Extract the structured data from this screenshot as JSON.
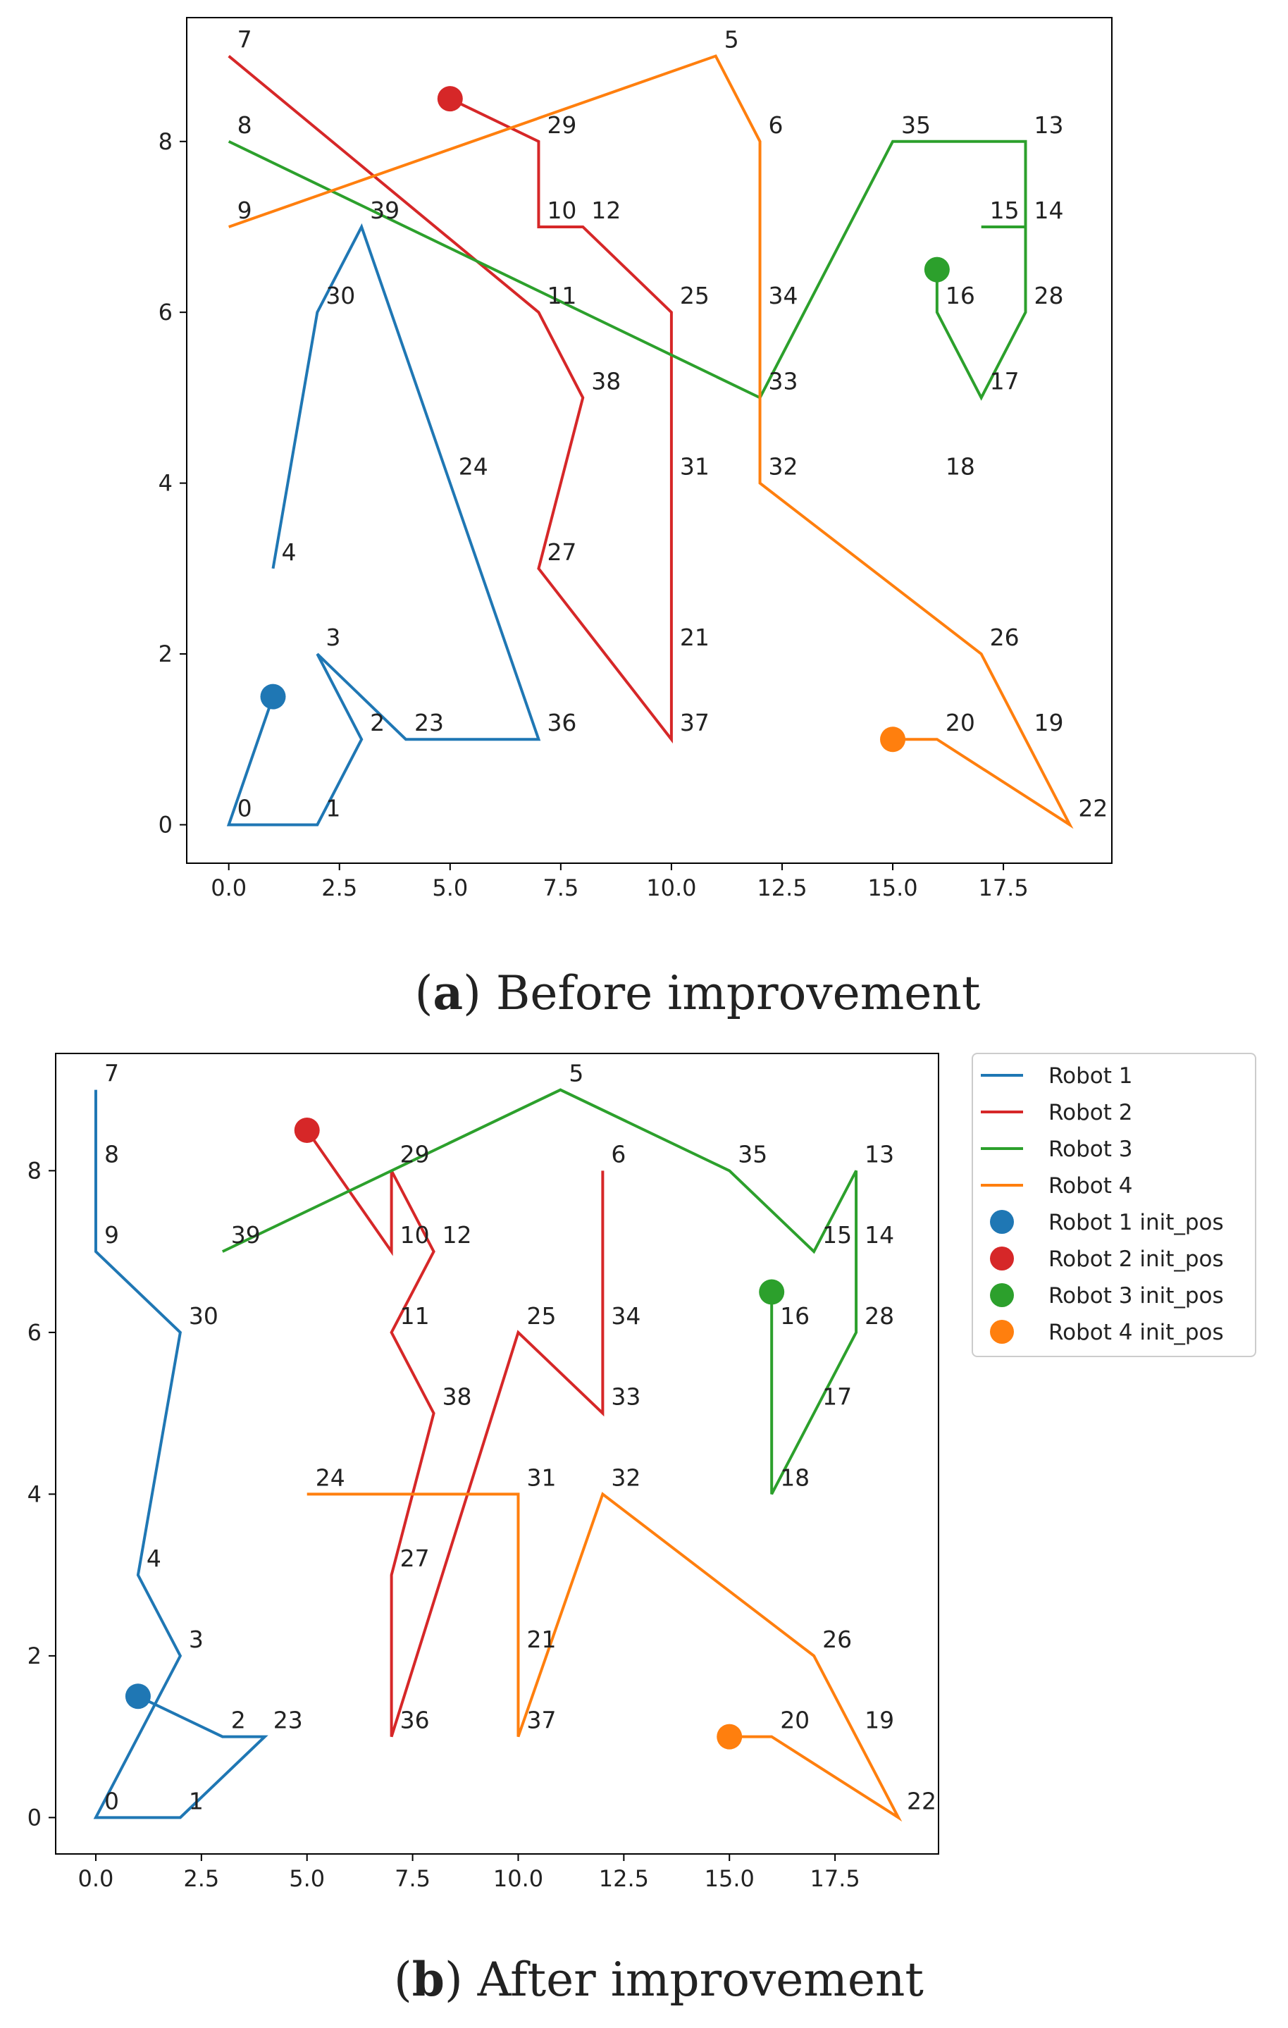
{
  "chart_data": [
    {
      "type": "line",
      "title": "",
      "caption_letter": "a",
      "caption_text": "Before improvement",
      "xlabel": "",
      "ylabel": "",
      "xlim": [
        -0.95,
        19.95
      ],
      "ylim": [
        -0.45,
        9.45
      ],
      "xticks": [
        0.0,
        2.5,
        5.0,
        7.5,
        10.0,
        12.5,
        15.0,
        17.5
      ],
      "xtick_labels": [
        "0.0",
        "2.5",
        "5.0",
        "7.5",
        "10.0",
        "12.5",
        "15.0",
        "17.5"
      ],
      "yticks": [
        0,
        2,
        4,
        6,
        8
      ],
      "ytick_labels": [
        "0",
        "2",
        "4",
        "6",
        "8"
      ],
      "grid": false,
      "legend": null,
      "nodes": [
        {
          "label": "0",
          "x": 0,
          "y": 0
        },
        {
          "label": "1",
          "x": 2,
          "y": 0
        },
        {
          "label": "2",
          "x": 3,
          "y": 1
        },
        {
          "label": "3",
          "x": 2,
          "y": 2
        },
        {
          "label": "4",
          "x": 1,
          "y": 3
        },
        {
          "label": "5",
          "x": 11,
          "y": 9
        },
        {
          "label": "6",
          "x": 12,
          "y": 8
        },
        {
          "label": "7",
          "x": 0,
          "y": 9
        },
        {
          "label": "8",
          "x": 0,
          "y": 8
        },
        {
          "label": "9",
          "x": 0,
          "y": 7
        },
        {
          "label": "10",
          "x": 7,
          "y": 7
        },
        {
          "label": "11",
          "x": 7,
          "y": 6
        },
        {
          "label": "12",
          "x": 8,
          "y": 7
        },
        {
          "label": "13",
          "x": 18,
          "y": 8
        },
        {
          "label": "14",
          "x": 18,
          "y": 7
        },
        {
          "label": "15",
          "x": 17,
          "y": 7
        },
        {
          "label": "16",
          "x": 16,
          "y": 6
        },
        {
          "label": "17",
          "x": 17,
          "y": 5
        },
        {
          "label": "18",
          "x": 16,
          "y": 4
        },
        {
          "label": "19",
          "x": 18,
          "y": 1
        },
        {
          "label": "20",
          "x": 16,
          "y": 1
        },
        {
          "label": "21",
          "x": 10,
          "y": 2
        },
        {
          "label": "22",
          "x": 19,
          "y": 0
        },
        {
          "label": "23",
          "x": 4,
          "y": 1
        },
        {
          "label": "24",
          "x": 5,
          "y": 4
        },
        {
          "label": "25",
          "x": 10,
          "y": 6
        },
        {
          "label": "26",
          "x": 17,
          "y": 2
        },
        {
          "label": "27",
          "x": 7,
          "y": 3
        },
        {
          "label": "28",
          "x": 18,
          "y": 6
        },
        {
          "label": "29",
          "x": 7,
          "y": 8
        },
        {
          "label": "30",
          "x": 2,
          "y": 6
        },
        {
          "label": "31",
          "x": 10,
          "y": 4
        },
        {
          "label": "32",
          "x": 12,
          "y": 4
        },
        {
          "label": "33",
          "x": 12,
          "y": 5
        },
        {
          "label": "34",
          "x": 12,
          "y": 6
        },
        {
          "label": "35",
          "x": 15,
          "y": 8
        },
        {
          "label": "36",
          "x": 7,
          "y": 1
        },
        {
          "label": "37",
          "x": 10,
          "y": 1
        },
        {
          "label": "38",
          "x": 8,
          "y": 5
        },
        {
          "label": "39",
          "x": 3,
          "y": 7
        }
      ],
      "series": [
        {
          "name": "Robot 1",
          "color": "#1f77b4",
          "init_pos": [
            1,
            1.5
          ],
          "x": [
            1,
            0,
            2,
            3,
            2,
            4,
            7,
            3,
            2,
            1
          ],
          "y": [
            1.5,
            0,
            0,
            1,
            2,
            1,
            1,
            7,
            6,
            3
          ]
        },
        {
          "name": "Robot 2",
          "color": "#d62728",
          "init_pos": [
            5,
            8.5
          ],
          "x": [
            5,
            7,
            7,
            8,
            10,
            10,
            7,
            8,
            7,
            0
          ],
          "y": [
            8.5,
            8,
            7,
            7,
            6,
            1,
            3,
            5,
            6,
            9
          ]
        },
        {
          "name": "Robot 3",
          "color": "#2ca02c",
          "init_pos": [
            16,
            6.5
          ],
          "x": [
            16,
            16,
            17,
            18,
            18,
            17,
            18,
            18,
            15,
            12,
            0
          ],
          "y": [
            6.5,
            6,
            5,
            6,
            7,
            7,
            7,
            8,
            8,
            5,
            8
          ]
        },
        {
          "name": "Robot 4",
          "color": "#ff7f0e",
          "init_pos": [
            15,
            1
          ],
          "x": [
            15,
            16,
            19,
            17,
            12,
            12,
            11,
            0
          ],
          "y": [
            1,
            1,
            0,
            2,
            4,
            8,
            9,
            7
          ]
        }
      ]
    },
    {
      "type": "line",
      "title": "",
      "caption_letter": "b",
      "caption_text": "After improvement",
      "xlabel": "",
      "ylabel": "",
      "xlim": [
        -0.95,
        19.95
      ],
      "ylim": [
        -0.45,
        9.45
      ],
      "xticks": [
        0.0,
        2.5,
        5.0,
        7.5,
        10.0,
        12.5,
        15.0,
        17.5
      ],
      "xtick_labels": [
        "0.0",
        "2.5",
        "5.0",
        "7.5",
        "10.0",
        "12.5",
        "15.0",
        "17.5"
      ],
      "yticks": [
        0,
        2,
        4,
        6,
        8
      ],
      "ytick_labels": [
        "0",
        "2",
        "4",
        "6",
        "8"
      ],
      "grid": false,
      "legend": {
        "placement": "outside-right",
        "entries": [
          {
            "label": "Robot 1",
            "kind": "line",
            "color": "#1f77b4"
          },
          {
            "label": "Robot 2",
            "kind": "line",
            "color": "#d62728"
          },
          {
            "label": "Robot 3",
            "kind": "line",
            "color": "#2ca02c"
          },
          {
            "label": "Robot 4",
            "kind": "line",
            "color": "#ff7f0e"
          },
          {
            "label": "Robot 1 init_pos",
            "kind": "marker",
            "color": "#1f77b4"
          },
          {
            "label": "Robot 2 init_pos",
            "kind": "marker",
            "color": "#d62728"
          },
          {
            "label": "Robot 3 init_pos",
            "kind": "marker",
            "color": "#2ca02c"
          },
          {
            "label": "Robot 4 init_pos",
            "kind": "marker",
            "color": "#ff7f0e"
          }
        ]
      },
      "nodes": [
        {
          "label": "0",
          "x": 0,
          "y": 0
        },
        {
          "label": "1",
          "x": 2,
          "y": 0
        },
        {
          "label": "2",
          "x": 3,
          "y": 1
        },
        {
          "label": "3",
          "x": 2,
          "y": 2
        },
        {
          "label": "4",
          "x": 1,
          "y": 3
        },
        {
          "label": "5",
          "x": 11,
          "y": 9
        },
        {
          "label": "6",
          "x": 12,
          "y": 8
        },
        {
          "label": "7",
          "x": 0,
          "y": 9
        },
        {
          "label": "8",
          "x": 0,
          "y": 8
        },
        {
          "label": "9",
          "x": 0,
          "y": 7
        },
        {
          "label": "10",
          "x": 7,
          "y": 7
        },
        {
          "label": "11",
          "x": 7,
          "y": 6
        },
        {
          "label": "12",
          "x": 8,
          "y": 7
        },
        {
          "label": "13",
          "x": 18,
          "y": 8
        },
        {
          "label": "14",
          "x": 18,
          "y": 7
        },
        {
          "label": "15",
          "x": 17,
          "y": 7
        },
        {
          "label": "16",
          "x": 16,
          "y": 6
        },
        {
          "label": "17",
          "x": 17,
          "y": 5
        },
        {
          "label": "18",
          "x": 16,
          "y": 4
        },
        {
          "label": "19",
          "x": 18,
          "y": 1
        },
        {
          "label": "20",
          "x": 16,
          "y": 1
        },
        {
          "label": "21",
          "x": 10,
          "y": 2
        },
        {
          "label": "22",
          "x": 19,
          "y": 0
        },
        {
          "label": "23",
          "x": 4,
          "y": 1
        },
        {
          "label": "24",
          "x": 5,
          "y": 4
        },
        {
          "label": "25",
          "x": 10,
          "y": 6
        },
        {
          "label": "26",
          "x": 17,
          "y": 2
        },
        {
          "label": "27",
          "x": 7,
          "y": 3
        },
        {
          "label": "28",
          "x": 18,
          "y": 6
        },
        {
          "label": "29",
          "x": 7,
          "y": 8
        },
        {
          "label": "30",
          "x": 2,
          "y": 6
        },
        {
          "label": "31",
          "x": 10,
          "y": 4
        },
        {
          "label": "32",
          "x": 12,
          "y": 4
        },
        {
          "label": "33",
          "x": 12,
          "y": 5
        },
        {
          "label": "34",
          "x": 12,
          "y": 6
        },
        {
          "label": "35",
          "x": 15,
          "y": 8
        },
        {
          "label": "36",
          "x": 7,
          "y": 1
        },
        {
          "label": "37",
          "x": 10,
          "y": 1
        },
        {
          "label": "38",
          "x": 8,
          "y": 5
        },
        {
          "label": "39",
          "x": 3,
          "y": 7
        }
      ],
      "series": [
        {
          "name": "Robot 1",
          "color": "#1f77b4",
          "init_pos": [
            1,
            1.5
          ],
          "x": [
            1,
            3,
            4,
            2,
            0,
            2,
            1,
            2,
            0,
            0,
            0
          ],
          "y": [
            1.5,
            1,
            1,
            0,
            0,
            2,
            3,
            6,
            7,
            8,
            9
          ]
        },
        {
          "name": "Robot 2",
          "color": "#d62728",
          "init_pos": [
            5,
            8.5
          ],
          "x": [
            5,
            7,
            7,
            8,
            7,
            8,
            7,
            7,
            10,
            12,
            12
          ],
          "y": [
            8.5,
            7,
            8,
            7,
            6,
            5,
            3,
            1,
            6,
            5,
            8
          ]
        },
        {
          "name": "Robot 3",
          "color": "#2ca02c",
          "init_pos": [
            16,
            6.5
          ],
          "x": [
            16,
            16,
            16,
            17,
            18,
            18,
            18,
            17,
            15,
            11,
            3
          ],
          "y": [
            6.5,
            6,
            4,
            5,
            6,
            7,
            8,
            7,
            8,
            9,
            7
          ]
        },
        {
          "name": "Robot 4",
          "color": "#ff7f0e",
          "init_pos": [
            15,
            1
          ],
          "x": [
            15,
            16,
            19,
            17,
            12,
            10,
            10,
            10,
            5
          ],
          "y": [
            1,
            1,
            0,
            2,
            4,
            1,
            2,
            4,
            4
          ]
        }
      ]
    }
  ]
}
